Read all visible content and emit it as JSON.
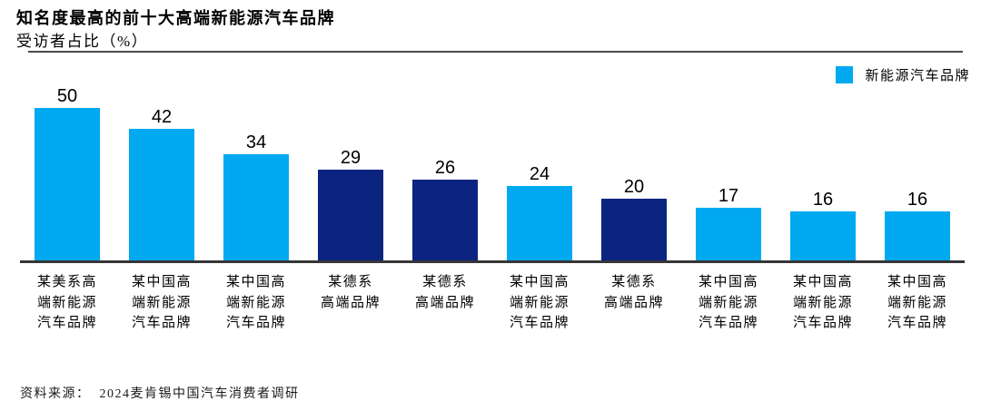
{
  "header": {
    "title": "知名度最高的前十大高端新能源汽车品牌",
    "subtitle": "受访者占比（%）"
  },
  "legend": {
    "label": "新能源汽车品牌",
    "color": "#00A9F0"
  },
  "chart_data": {
    "type": "bar",
    "title": "知名度最高的前十大高端新能源汽车品牌",
    "subtitle": "受访者占比（%）",
    "ylabel": "受访者占比（%）",
    "xlabel": "",
    "ylim": [
      0,
      50
    ],
    "grid": false,
    "legend_position": "top-right",
    "legend_entries": [
      "新能源汽车品牌"
    ],
    "categories": [
      "某美系高\n端新能源\n汽车品牌",
      "某中国高\n端新能源\n汽车品牌",
      "某中国高\n端新能源\n汽车品牌",
      "某德系\n高端品牌",
      "某德系\n高端品牌",
      "某中国高\n端新能源\n汽车品牌",
      "某德系\n高端品牌",
      "某中国高\n端新能源\n汽车品牌",
      "某中国高\n端新能源\n汽车品牌",
      "某中国高\n端新能源\n汽车品牌"
    ],
    "values": [
      50,
      42,
      34,
      29,
      26,
      24,
      20,
      17,
      16,
      16
    ],
    "bar_colors": [
      "light",
      "light",
      "light",
      "dark",
      "dark",
      "light",
      "dark",
      "light",
      "light",
      "light"
    ],
    "palette": {
      "light": "#00A9F0",
      "dark": "#0A2480"
    }
  },
  "footer": {
    "source_prefix": "资料来源：",
    "source_text": "2024麦肯锡中国汽车消费者调研"
  }
}
